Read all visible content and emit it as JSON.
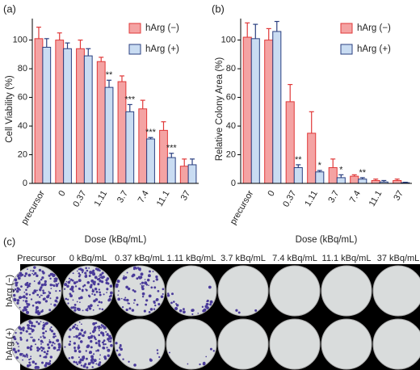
{
  "chart_data": [
    {
      "type": "bar",
      "panel": "(a)",
      "y_label": "Cell Viability (%)",
      "x_label": "Dose (kBq/mL)",
      "categories": [
        "precursor",
        "0",
        "0.37",
        "1.11",
        "3.7",
        "7.4",
        "11.1",
        "37"
      ],
      "series": [
        {
          "name": "hArg (−)",
          "color": "#f4a3a3",
          "edge": "#e03838",
          "values": [
            101,
            100,
            94,
            85,
            71,
            52,
            37,
            12
          ],
          "errors": [
            8,
            5,
            6,
            3,
            4,
            6,
            6,
            5
          ]
        },
        {
          "name": "hArg (+)",
          "color": "#c9dcf2",
          "edge": "#2a3f80",
          "values": [
            95,
            94,
            89,
            67,
            50,
            31,
            18,
            13
          ],
          "errors": [
            6,
            4,
            5,
            5,
            5,
            1,
            3,
            4
          ]
        }
      ],
      "annotations": [
        {
          "x": "1.11",
          "text": "**"
        },
        {
          "x": "3.7",
          "text": "***"
        },
        {
          "x": "7.4",
          "text": "***"
        },
        {
          "x": "11.1",
          "text": "***"
        }
      ],
      "ylim": [
        0,
        115
      ],
      "yticks": [
        0,
        20,
        40,
        60,
        80,
        100
      ],
      "legend": "top-right"
    },
    {
      "type": "bar",
      "panel": "(b)",
      "y_label": "Relative Colony Area (%)",
      "x_label": "Dose (kBq/mL)",
      "categories": [
        "precursor",
        "0",
        "0.37",
        "1.11",
        "3.7",
        "7.4",
        "11.1",
        "37"
      ],
      "series": [
        {
          "name": "hArg (−)",
          "color": "#f4a3a3",
          "edge": "#e03838",
          "values": [
            102,
            100,
            57,
            35,
            11,
            5,
            2,
            2
          ],
          "errors": [
            10,
            8,
            12,
            15,
            6,
            1,
            1,
            1
          ]
        },
        {
          "name": "hArg (+)",
          "color": "#c9dcf2",
          "edge": "#2a3f80",
          "values": [
            101,
            106,
            11,
            8,
            4,
            3,
            1,
            0.5
          ],
          "errors": [
            10,
            7,
            2,
            1,
            2,
            1,
            1,
            0.3
          ]
        }
      ],
      "annotations": [
        {
          "x": "0.37",
          "text": "**"
        },
        {
          "x": "1.11",
          "text": "*"
        },
        {
          "x": "3.7",
          "text": "*"
        },
        {
          "x": "7.4",
          "text": "**"
        }
      ],
      "ylim": [
        0,
        115
      ],
      "yticks": [
        0,
        20,
        40,
        60,
        80,
        100
      ],
      "legend": "top-right"
    }
  ],
  "photo_panel": {
    "panel": "(c)",
    "columns": [
      "Precursor",
      "0 kBq/mL",
      "0.37 kBq/mL",
      "1.11 kBq/mL",
      "3.7 kBq/mL",
      "7.4 kBq/mL",
      "11.1 kBq/mL",
      "37 kBq/mL"
    ],
    "rows": [
      "hArg (−)",
      "hArg (+)"
    ]
  }
}
